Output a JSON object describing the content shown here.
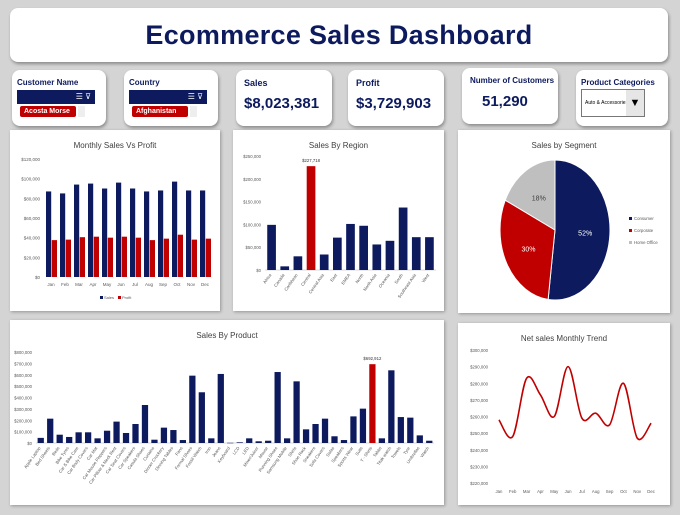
{
  "header": {
    "title": "Ecommerce Sales Dashboard"
  },
  "kpis": {
    "customer_name": {
      "label": "Customer Name",
      "selected": "Acosta Morse"
    },
    "country": {
      "label": "Country",
      "selected": "Afghanistan"
    },
    "sales": {
      "label": "Sales",
      "value": "$8,023,381"
    },
    "profit": {
      "label": "Profit",
      "value": "$3,729,903"
    },
    "customers": {
      "label": "Number of Customers",
      "value": "51,290"
    },
    "product_categories": {
      "label": "Product Categories",
      "selected": "Auto & Accessories"
    }
  },
  "icons": {
    "filter_list": "multi-select-icon",
    "clear_filter": "clear-filter-icon",
    "dropdown": "triangle-down-icon"
  },
  "colors": {
    "navy": "#0d1b5e",
    "red": "#c00000",
    "gray": "#bfbfbf"
  },
  "chart_data": [
    {
      "id": "monthly",
      "type": "bar",
      "title": "Monthly Sales Vs Profit",
      "categories": [
        "Jan",
        "Feb",
        "Mar",
        "Apr",
        "May",
        "Jun",
        "Jul",
        "Aug",
        "Sep",
        "Oct",
        "Nov",
        "Dec"
      ],
      "series": [
        {
          "name": "Sales",
          "values": [
            87000,
            85000,
            94000,
            95000,
            90000,
            96000,
            90000,
            87000,
            88000,
            97000,
            88000,
            88000
          ]
        },
        {
          "name": "Profit",
          "values": [
            37500,
            38000,
            40500,
            41000,
            40000,
            41000,
            40000,
            37500,
            39000,
            43000,
            38000,
            39000
          ]
        }
      ],
      "ylim": [
        0,
        120000
      ],
      "yticks": [
        "$0",
        "$20,000",
        "$40,000",
        "$60,000",
        "$80,000",
        "$100,000",
        "$120,000"
      ],
      "legend": "bottom",
      "grid": false
    },
    {
      "id": "region",
      "type": "bar",
      "title": "Sales By Region",
      "categories": [
        "Africa",
        "Canada",
        "Caribbean",
        "Central",
        "Central Asia",
        "East",
        "EMEA",
        "North",
        "North Asia",
        "Oceania",
        "South",
        "Southeast Asia",
        "West"
      ],
      "values": [
        99000,
        8000,
        30000,
        227718,
        34000,
        71000,
        101000,
        97000,
        56000,
        64000,
        137000,
        72000,
        72000
      ],
      "highlight_index": 3,
      "data_label": "$227,718",
      "ylim": [
        0,
        250000
      ],
      "yticks": [
        "$0",
        "$50,000",
        "$100,000",
        "$150,000",
        "$200,000",
        "$250,000"
      ],
      "grid": false
    },
    {
      "id": "segment",
      "type": "pie",
      "title": "Sales by Segment",
      "labels": [
        "Consumer",
        "Corporate",
        "Home Office"
      ],
      "values": [
        52,
        30,
        18
      ],
      "data_labels": [
        "52%",
        "30%",
        "18%"
      ],
      "legend": "right"
    },
    {
      "id": "product",
      "type": "bar",
      "title": "Sales By Product",
      "categories": [
        "Apple Laptop",
        "Bed Sheets",
        "Beds",
        "Bike Tyres",
        "Car & Bike Care",
        "Car Body Covers",
        "Car Mat",
        "Car Mouse Floppers",
        "Car Pillow & Neck Rest",
        "Car Seat Covers",
        "Car Speakers",
        "Casula Shoes",
        "Curtains",
        "Dinner Crockery",
        "Dinning Tables",
        "Fans",
        "Formal Shoes",
        "Fossil Watch",
        "Iron",
        "Jeans",
        "Keyboard",
        "LCD",
        "LED",
        "Mixer/Juicer",
        "Mouse",
        "Running Shoes",
        "Samsung Mobile",
        "Shirts",
        "Shoe Rack",
        "Sneakers",
        "Sofa Covers",
        "Sofas",
        "Speakers",
        "Sports Wear",
        "Suits",
        "T - Shirts",
        "Tablet",
        "Titak watch",
        "Towels",
        "Tyre",
        "Umbrellas",
        "Watch"
      ],
      "values": [
        45000,
        214000,
        73000,
        53000,
        94000,
        94000,
        41000,
        108000,
        188000,
        88000,
        167000,
        334000,
        29000,
        135000,
        114000,
        26000,
        592000,
        446000,
        41000,
        607000,
        2000,
        6000,
        41000,
        15000,
        20000,
        624000,
        41000,
        542000,
        120000,
        167000,
        214000,
        59000,
        26000,
        234000,
        302000,
        692912,
        41000,
        639000,
        228000,
        223000,
        67000,
        20000
      ],
      "highlight_index": 35,
      "data_label": "$692,912",
      "ylim": [
        0,
        800000
      ],
      "yticks": [
        "$0",
        "$100,000",
        "$200,000",
        "$300,000",
        "$400,000",
        "$500,000",
        "$600,000",
        "$700,000",
        "$800,000"
      ],
      "grid": false
    },
    {
      "id": "trend",
      "type": "line",
      "title": "Net sales Monthly Trend",
      "categories": [
        "Jan",
        "Feb",
        "Mar",
        "Apr",
        "May",
        "Jun",
        "Jul",
        "Aug",
        "Sep",
        "Oct",
        "Nov",
        "Dec"
      ],
      "values": [
        258000,
        248000,
        283000,
        273000,
        260000,
        290000,
        259000,
        262000,
        255000,
        280000,
        247000,
        256000
      ],
      "ylim": [
        220000,
        300000
      ],
      "yticks": [
        "$220,000",
        "$230,000",
        "$240,000",
        "$250,000",
        "$260,000",
        "$270,000",
        "$280,000",
        "$290,000",
        "$300,000"
      ],
      "smooth": true,
      "grid": false
    }
  ]
}
